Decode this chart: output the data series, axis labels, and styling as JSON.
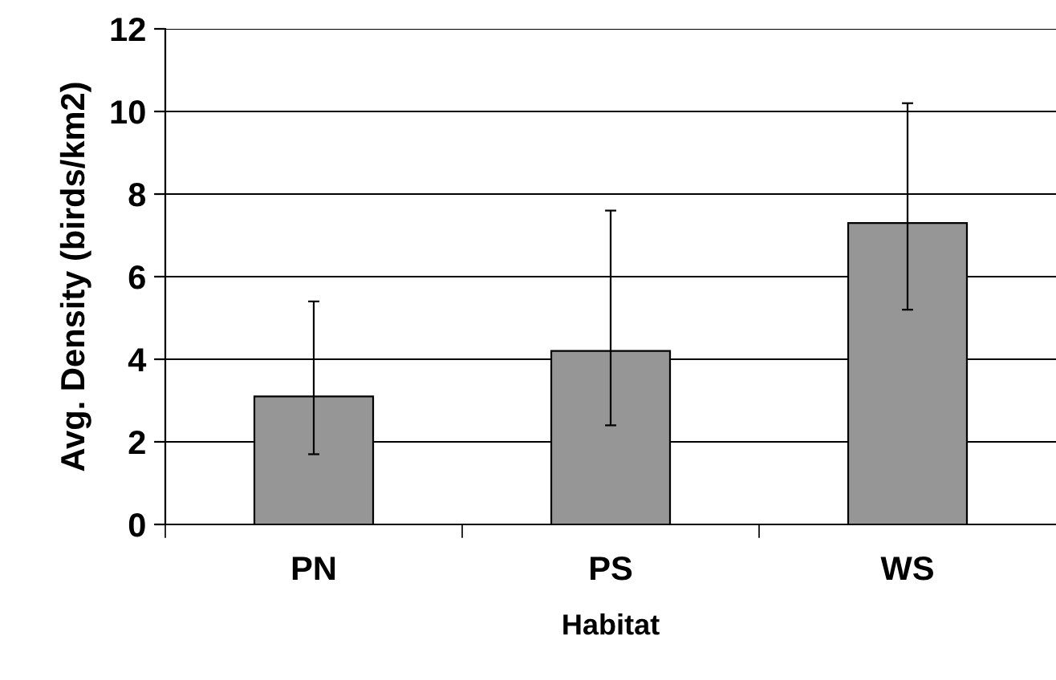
{
  "chart_data": {
    "type": "bar",
    "xlabel": "Habitat",
    "ylabel": "Avg. Density (birds/km2)",
    "categories": [
      "PN",
      "PS",
      "WS"
    ],
    "series": [
      {
        "color": "#969696",
        "values": [
          3.1,
          4.2,
          7.3
        ],
        "errors": [
          [
            1.7,
            5.4
          ],
          [
            2.4,
            7.6
          ],
          [
            5.2,
            10.2
          ]
        ]
      }
    ],
    "ylim": [
      0,
      12
    ],
    "yticks": [
      0,
      2,
      4,
      6,
      8,
      10,
      12
    ],
    "grid": "y",
    "legend": false
  }
}
